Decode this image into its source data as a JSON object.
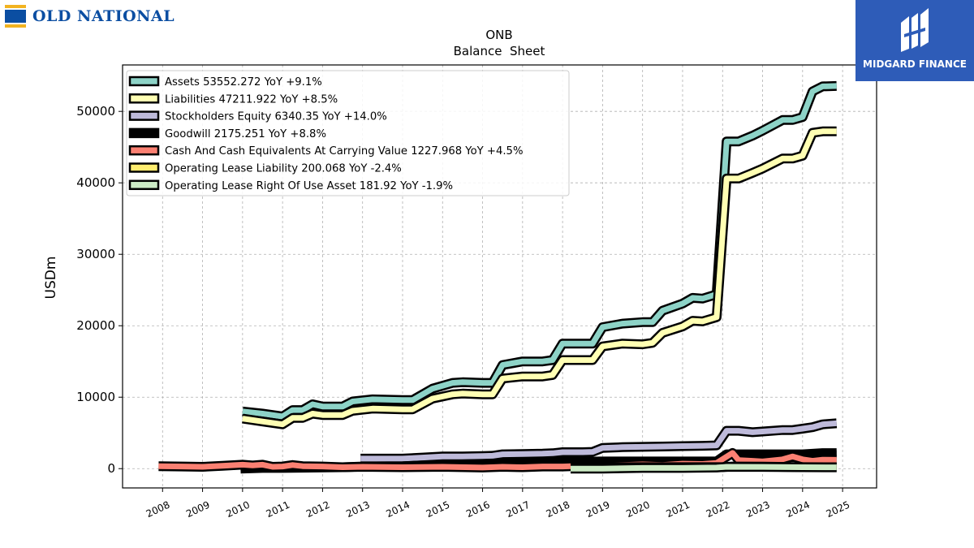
{
  "logos": {
    "left": "OLD NATIONAL",
    "right": "MIDGARD FINANCE"
  },
  "chart_data": {
    "type": "line",
    "title": "ONB",
    "subtitle": "Balance  Sheet",
    "ylabel": "USDm",
    "xlabel": "",
    "xlim": [
      2007.0,
      2025.85
    ],
    "ylim": [
      -2700,
      56500
    ],
    "x_ticks": [
      "2008",
      "2009",
      "2010",
      "2011",
      "2012",
      "2013",
      "2014",
      "2015",
      "2016",
      "2017",
      "2018",
      "2019",
      "2020",
      "2021",
      "2022",
      "2023",
      "2024",
      "2025"
    ],
    "y_ticks": [
      0,
      10000,
      20000,
      30000,
      40000,
      50000
    ],
    "grid": true,
    "legend_position": "top-left",
    "series": [
      {
        "name": "Assets",
        "legend": "Assets  53552.272 YoY +9.1%",
        "color": "#8dd3c7",
        "points": [
          [
            2010.0,
            8000
          ],
          [
            2010.5,
            7700
          ],
          [
            2011.0,
            7300
          ],
          [
            2011.25,
            8200
          ],
          [
            2011.5,
            8200
          ],
          [
            2011.75,
            9000
          ],
          [
            2012.0,
            8700
          ],
          [
            2012.5,
            8700
          ],
          [
            2012.75,
            9400
          ],
          [
            2013.25,
            9700
          ],
          [
            2014.0,
            9600
          ],
          [
            2014.25,
            9600
          ],
          [
            2014.75,
            11200
          ],
          [
            2015.25,
            12000
          ],
          [
            2015.5,
            12100
          ],
          [
            2016.0,
            12000
          ],
          [
            2016.25,
            12000
          ],
          [
            2016.5,
            14500
          ],
          [
            2017.0,
            15000
          ],
          [
            2017.5,
            15000
          ],
          [
            2017.75,
            15200
          ],
          [
            2018.0,
            17500
          ],
          [
            2018.75,
            17500
          ],
          [
            2019.0,
            19800
          ],
          [
            2019.5,
            20300
          ],
          [
            2020.0,
            20500
          ],
          [
            2020.25,
            20500
          ],
          [
            2020.5,
            22100
          ],
          [
            2021.0,
            23100
          ],
          [
            2021.25,
            23900
          ],
          [
            2021.5,
            23800
          ],
          [
            2021.85,
            24400
          ],
          [
            2022.1,
            45800
          ],
          [
            2022.4,
            45800
          ],
          [
            2022.75,
            46600
          ],
          [
            2023.0,
            47300
          ],
          [
            2023.5,
            48800
          ],
          [
            2023.75,
            48800
          ],
          [
            2024.0,
            49200
          ],
          [
            2024.25,
            52800
          ],
          [
            2024.5,
            53500
          ],
          [
            2024.85,
            53552
          ]
        ]
      },
      {
        "name": "Liabilities",
        "legend": "Liabilities  47211.922 YoY +8.5%",
        "color": "#ffffb3",
        "points": [
          [
            2010.0,
            7000
          ],
          [
            2010.5,
            6600
          ],
          [
            2011.0,
            6200
          ],
          [
            2011.25,
            7100
          ],
          [
            2011.5,
            7100
          ],
          [
            2011.75,
            7700
          ],
          [
            2012.0,
            7500
          ],
          [
            2012.5,
            7500
          ],
          [
            2012.75,
            8100
          ],
          [
            2013.25,
            8400
          ],
          [
            2014.0,
            8300
          ],
          [
            2014.25,
            8300
          ],
          [
            2014.75,
            9800
          ],
          [
            2015.25,
            10400
          ],
          [
            2015.5,
            10500
          ],
          [
            2016.0,
            10400
          ],
          [
            2016.25,
            10400
          ],
          [
            2016.5,
            12600
          ],
          [
            2017.0,
            12900
          ],
          [
            2017.5,
            12900
          ],
          [
            2017.75,
            13100
          ],
          [
            2018.0,
            15200
          ],
          [
            2018.75,
            15200
          ],
          [
            2019.0,
            17100
          ],
          [
            2019.5,
            17500
          ],
          [
            2020.0,
            17400
          ],
          [
            2020.25,
            17600
          ],
          [
            2020.5,
            19000
          ],
          [
            2021.0,
            19900
          ],
          [
            2021.25,
            20700
          ],
          [
            2021.5,
            20600
          ],
          [
            2021.85,
            21200
          ],
          [
            2022.1,
            40600
          ],
          [
            2022.4,
            40600
          ],
          [
            2022.75,
            41400
          ],
          [
            2023.0,
            42000
          ],
          [
            2023.5,
            43400
          ],
          [
            2023.75,
            43400
          ],
          [
            2024.0,
            43800
          ],
          [
            2024.25,
            47000
          ],
          [
            2024.5,
            47200
          ],
          [
            2024.85,
            47212
          ]
        ]
      },
      {
        "name": "Stockholders Equity",
        "legend": "Stockholders Equity  6340.35 YoY +14.0%",
        "color": "#bebada",
        "points": [
          [
            2012.95,
            1400
          ],
          [
            2013.5,
            1400
          ],
          [
            2014.0,
            1400
          ],
          [
            2014.5,
            1550
          ],
          [
            2015.0,
            1700
          ],
          [
            2015.5,
            1700
          ],
          [
            2016.0,
            1750
          ],
          [
            2016.25,
            1800
          ],
          [
            2016.5,
            2000
          ],
          [
            2017.0,
            2050
          ],
          [
            2017.5,
            2100
          ],
          [
            2017.75,
            2150
          ],
          [
            2018.0,
            2300
          ],
          [
            2018.5,
            2300
          ],
          [
            2018.75,
            2350
          ],
          [
            2019.0,
            2900
          ],
          [
            2019.5,
            3000
          ],
          [
            2020.0,
            3050
          ],
          [
            2020.5,
            3100
          ],
          [
            2021.0,
            3150
          ],
          [
            2021.5,
            3200
          ],
          [
            2021.85,
            3250
          ],
          [
            2022.1,
            5300
          ],
          [
            2022.4,
            5300
          ],
          [
            2022.75,
            5100
          ],
          [
            2023.0,
            5200
          ],
          [
            2023.5,
            5400
          ],
          [
            2023.75,
            5400
          ],
          [
            2024.0,
            5600
          ],
          [
            2024.25,
            5800
          ],
          [
            2024.5,
            6200
          ],
          [
            2024.85,
            6340
          ]
        ]
      },
      {
        "name": "Goodwill",
        "legend": "Goodwill  2175.251 YoY +8.8%",
        "color": "#000000",
        "points": [
          [
            2009.95,
            0
          ],
          [
            2010.5,
            100
          ],
          [
            2011.0,
            100
          ],
          [
            2012.5,
            200
          ],
          [
            2013.0,
            300
          ],
          [
            2014.0,
            350
          ],
          [
            2015.0,
            550
          ],
          [
            2016.0,
            650
          ],
          [
            2017.0,
            750
          ],
          [
            2018.0,
            950
          ],
          [
            2019.0,
            1000
          ],
          [
            2020.0,
            1000
          ],
          [
            2021.0,
            1000
          ],
          [
            2021.85,
            1000
          ],
          [
            2022.1,
            2000
          ],
          [
            2023.0,
            2000
          ],
          [
            2024.0,
            2000
          ],
          [
            2024.5,
            2175
          ],
          [
            2024.85,
            2175
          ]
        ]
      },
      {
        "name": "Cash And Cash Equivalents At Carrying Value",
        "legend": "Cash And Cash Equivalents At Carrying Value  1227.968 YoY +4.5%",
        "color": "#fb8072",
        "points": [
          [
            2007.9,
            350
          ],
          [
            2008.5,
            300
          ],
          [
            2009.0,
            250
          ],
          [
            2009.5,
            400
          ],
          [
            2010.0,
            550
          ],
          [
            2010.25,
            450
          ],
          [
            2010.5,
            550
          ],
          [
            2010.75,
            250
          ],
          [
            2011.0,
            300
          ],
          [
            2011.25,
            500
          ],
          [
            2011.5,
            350
          ],
          [
            2012.0,
            300
          ],
          [
            2012.5,
            200
          ],
          [
            2013.0,
            250
          ],
          [
            2014.0,
            200
          ],
          [
            2015.0,
            250
          ],
          [
            2016.0,
            150
          ],
          [
            2016.5,
            250
          ],
          [
            2017.0,
            200
          ],
          [
            2017.5,
            300
          ],
          [
            2018.0,
            300
          ],
          [
            2018.5,
            400
          ],
          [
            2019.0,
            450
          ],
          [
            2019.5,
            500
          ],
          [
            2020.0,
            600
          ],
          [
            2020.5,
            500
          ],
          [
            2021.0,
            700
          ],
          [
            2021.5,
            650
          ],
          [
            2021.85,
            800
          ],
          [
            2022.25,
            2200
          ],
          [
            2022.4,
            1200
          ],
          [
            2022.75,
            1100
          ],
          [
            2023.0,
            1000
          ],
          [
            2023.5,
            1300
          ],
          [
            2023.75,
            1700
          ],
          [
            2024.0,
            1300
          ],
          [
            2024.25,
            1100
          ],
          [
            2024.5,
            1250
          ],
          [
            2024.85,
            1228
          ]
        ]
      },
      {
        "name": "Operating Lease Liability",
        "legend": "Operating Lease Liability  200.068 YoY -2.4%",
        "color": "#ffed6f",
        "points": [
          [
            2018.2,
            220
          ],
          [
            2019.0,
            220
          ],
          [
            2020.0,
            210
          ],
          [
            2021.0,
            210
          ],
          [
            2022.0,
            210
          ],
          [
            2022.25,
            300
          ],
          [
            2023.0,
            290
          ],
          [
            2024.0,
            205
          ],
          [
            2024.85,
            200
          ]
        ]
      },
      {
        "name": "Operating Lease Right Of Use Asset",
        "legend": "Operating Lease Right Of Use Asset  181.92 YoY -1.9%",
        "color": "#ccebc5",
        "points": [
          [
            2018.2,
            0
          ],
          [
            2019.0,
            0
          ],
          [
            2020.0,
            100
          ],
          [
            2021.0,
            100
          ],
          [
            2021.85,
            150
          ],
          [
            2022.1,
            250
          ],
          [
            2023.0,
            240
          ],
          [
            2024.0,
            200
          ],
          [
            2024.85,
            182
          ]
        ]
      }
    ]
  }
}
